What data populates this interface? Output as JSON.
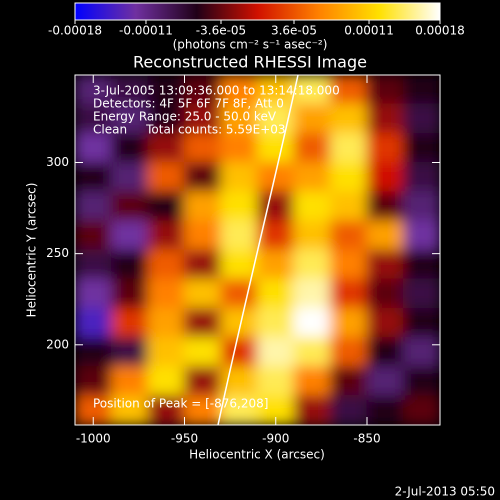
{
  "chart_data": {
    "type": "heatmap",
    "title": "Reconstructed RHESSI Image",
    "x_label": "Heliocentric X (arcsec)",
    "y_label": "Heliocentric Y (arcsec)",
    "annotations": [
      "3-Jul-2005 13:09:36.000 to 13:14:18.000",
      "Detectors: 4F 5F 6F 7F 8F, Att 0",
      "Energy Range: 25.0 - 50.0 keV",
      "Clean     Total counts: 5.59E+03"
    ],
    "peak_label": "Position of Peak = [-876,208]",
    "footer": "2-Jul-2013 05:50",
    "colorbar_label": "(photons cm⁻² s⁻¹ asec⁻²)",
    "colormap": [
      "#0000ff",
      "#7030a0",
      "#200018",
      "#d01000",
      "#ff8000",
      "#ffe000",
      "#ffffff"
    ],
    "zlim": [
      -0.00018,
      0.00018
    ],
    "zticks": [
      -0.00018,
      -0.00011,
      {
        "value": -3.6e-05,
        "label": "-3.6e-05"
      },
      {
        "value": 3.6e-05,
        "label": "3.6e-05"
      },
      0.00011,
      0.00018
    ],
    "xlim": [
      -1010,
      -810
    ],
    "xticks": [
      -1000,
      -950,
      -900,
      -850
    ],
    "ylim": [
      156,
      348
    ],
    "yticks": [
      200,
      250,
      300
    ],
    "x": [
      -1000,
      -980,
      -960,
      -940,
      -920,
      -900,
      -880,
      -860,
      -840,
      -820
    ],
    "y": [
      340,
      324,
      308,
      292,
      276,
      260,
      244,
      228,
      212,
      196,
      180,
      164
    ],
    "values": [
      [
        -0.0001,
        -8e-05,
        -6e-05,
        -4e-05,
        6e-05,
        0.0001,
        0.00014,
        4e-05,
        -4e-05,
        -6e-05
      ],
      [
        -8e-05,
        -0.0001,
        -6e-05,
        -2e-05,
        8e-05,
        0.00014,
        8e-05,
        0.0001,
        -2e-05,
        -8e-05
      ],
      [
        -0.00012,
        -6e-05,
        -2e-05,
        4e-05,
        6e-05,
        0.00012,
        4e-05,
        0.00014,
        2e-05,
        -6e-05
      ],
      [
        -6e-05,
        -0.0001,
        4e-05,
        -4e-05,
        0.0001,
        6e-05,
        8e-05,
        0.00012,
        0,
        -8e-05
      ],
      [
        -0.0001,
        -4e-05,
        -6e-05,
        8e-05,
        0.00012,
        -2e-05,
        0.00012,
        0.0001,
        -4e-05,
        -0.0001
      ],
      [
        -4e-05,
        -0.00012,
        -2e-05,
        6e-05,
        0.00014,
        2e-05,
        0.0001,
        4e-05,
        8e-05,
        -0.00012
      ],
      [
        -8e-05,
        -6e-05,
        4e-05,
        -2e-05,
        0.00012,
        8e-05,
        0.00014,
        6e-05,
        -2e-05,
        -6e-05
      ],
      [
        -0.00012,
        -4e-05,
        6e-05,
        0.0001,
        4e-05,
        0.00012,
        0.00016,
        2e-05,
        -4e-05,
        -8e-05
      ],
      [
        -0.00014,
        2e-05,
        8e-05,
        -2e-05,
        0.0001,
        0.00014,
        0.00018,
        8e-05,
        -2e-05,
        -6e-05
      ],
      [
        -6e-05,
        -8e-05,
        0.0001,
        0.00012,
        2e-05,
        0.00016,
        0.00014,
        4e-05,
        -6e-05,
        -0.0001
      ],
      [
        -4e-05,
        6e-05,
        0.00012,
        -2e-05,
        0.0001,
        0.00014,
        6e-05,
        -4e-05,
        -0.0001,
        -6e-05
      ],
      [
        4e-05,
        0.0001,
        -2e-05,
        6e-05,
        0.00014,
        0.00012,
        -2e-05,
        -8e-05,
        -6e-05,
        -4e-05
      ]
    ]
  }
}
